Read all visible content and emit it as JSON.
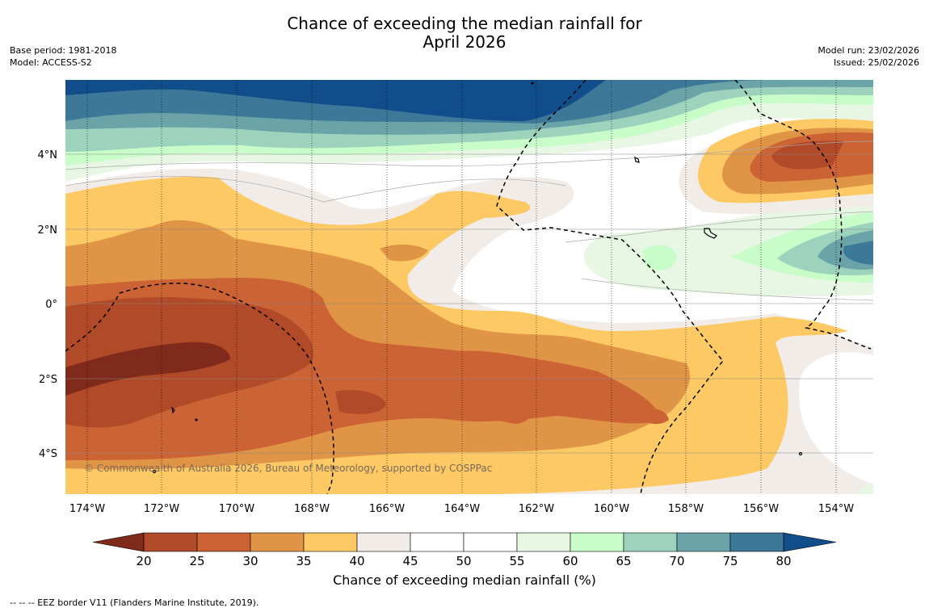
{
  "header": {
    "title_line1": "Chance of exceeding the median rainfall for",
    "title_line2": "April 2026",
    "base_period": "Base period: 1981-2018",
    "model": "Model: ACCESS-S2",
    "model_run": "Model run: 23/02/2026",
    "issued": "Issued: 25/02/2026"
  },
  "map": {
    "lon_labels": [
      "174°W",
      "172°W",
      "170°W",
      "168°W",
      "166°W",
      "164°W",
      "162°W",
      "160°W",
      "158°W",
      "156°W",
      "154°W"
    ],
    "lat_labels": [
      "4°N",
      "2°N",
      "0°",
      "2°S",
      "4°S"
    ],
    "copyright": "© Commonwealth of Australia 2026, Bureau of Meteorology, supported by COSPPac"
  },
  "colorbar": {
    "label": "Chance of exceeding median rainfall (%)",
    "ticks": [
      "20",
      "25",
      "30",
      "35",
      "40",
      "45",
      "50",
      "55",
      "60",
      "65",
      "70",
      "75",
      "80"
    ],
    "colors": {
      "under20": "#7f2a1a",
      "b20_25": "#b04a28",
      "b25_30": "#cc6334",
      "b30_35": "#e09446",
      "b35_40": "#fdc965",
      "b40_45": "#f1ece7",
      "b45_50": "#ffffff",
      "b50_55": "#ffffff",
      "b55_60": "#e8f6e4",
      "b60_65": "#c8fcc8",
      "b65_70": "#9dd3bd",
      "b70_75": "#6ba4a8",
      "b75_80": "#3d7899",
      "over80": "#114d8a"
    }
  },
  "footnote": "--  --  -- EEZ border V11 (Flanders Marine Institute, 2019)."
}
